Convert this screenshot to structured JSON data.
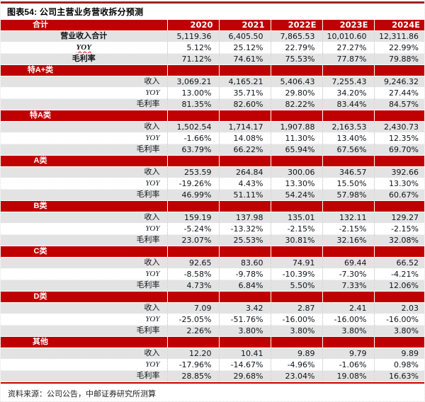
{
  "title": "图表54: 公司主营业务营收拆分预测",
  "source": "资料来源：公司公告，中邮证券研究所测算",
  "colors": {
    "header_red": "#C00000",
    "top_rule_red": "#9E2121",
    "row_gray": "#E3E3E3",
    "header_text": "#FFFFFF",
    "body_text": "#101418"
  },
  "chart_data": {
    "type": "table",
    "header": {
      "label": "合计",
      "years": [
        "2020",
        "2021",
        "2022E",
        "2023E",
        "2024E"
      ]
    },
    "sections": [
      {
        "name": "合计",
        "rows": [
          {
            "label": "营业收入合计",
            "values": [
              "5,119.36",
              "6,405.50",
              "7,865.53",
              "10,010.60",
              "12,311.86"
            ]
          },
          {
            "label": "YOY",
            "values": [
              "5.12%",
              "25.12%",
              "22.79%",
              "27.27%",
              "22.99%"
            ]
          },
          {
            "label": "毛利率",
            "values": [
              "71.12%",
              "74.61%",
              "75.53%",
              "77.87%",
              "79.88%"
            ]
          }
        ]
      },
      {
        "name": "特A+类",
        "rows": [
          {
            "label": "收入",
            "values": [
              "3,069.21",
              "4,165.21",
              "5,406.43",
              "7,255.43",
              "9,246.32"
            ]
          },
          {
            "label": "YOY",
            "values": [
              "13.00%",
              "35.71%",
              "29.80%",
              "34.20%",
              "27.44%"
            ]
          },
          {
            "label": "毛利率",
            "values": [
              "81.35%",
              "82.60%",
              "82.22%",
              "83.44%",
              "84.57%"
            ]
          }
        ]
      },
      {
        "name": "特A类",
        "rows": [
          {
            "label": "收入",
            "values": [
              "1,502.54",
              "1,714.17",
              "1,907.88",
              "2,163.53",
              "2,430.73"
            ]
          },
          {
            "label": "YOY",
            "values": [
              "-1.66%",
              "14.08%",
              "11.30%",
              "13.40%",
              "12.35%"
            ]
          },
          {
            "label": "毛利率",
            "values": [
              "63.79%",
              "66.22%",
              "65.94%",
              "67.56%",
              "69.70%"
            ]
          }
        ]
      },
      {
        "name": "A类",
        "rows": [
          {
            "label": "收入",
            "values": [
              "253.59",
              "264.84",
              "300.06",
              "346.57",
              "392.66"
            ]
          },
          {
            "label": "YOY",
            "values": [
              "-19.26%",
              "4.43%",
              "13.30%",
              "15.50%",
              "13.30%"
            ]
          },
          {
            "label": "毛利率",
            "values": [
              "46.99%",
              "51.11%",
              "54.24%",
              "57.98%",
              "60.67%"
            ]
          }
        ]
      },
      {
        "name": "B类",
        "rows": [
          {
            "label": "收入",
            "values": [
              "159.19",
              "137.98",
              "135.01",
              "132.11",
              "129.27"
            ]
          },
          {
            "label": "YOY",
            "values": [
              "-5.24%",
              "-13.32%",
              "-2.15%",
              "-2.15%",
              "-2.15%"
            ]
          },
          {
            "label": "毛利率",
            "values": [
              "23.07%",
              "25.53%",
              "30.81%",
              "32.16%",
              "32.08%"
            ]
          }
        ]
      },
      {
        "name": "C类",
        "rows": [
          {
            "label": "收入",
            "values": [
              "92.65",
              "83.60",
              "74.91",
              "69.44",
              "66.52"
            ]
          },
          {
            "label": "YOY",
            "values": [
              "-8.58%",
              "-9.78%",
              "-10.39%",
              "-7.30%",
              "-4.21%"
            ]
          },
          {
            "label": "毛利率",
            "values": [
              "4.73%",
              "6.84%",
              "5.50%",
              "7.33%",
              "12.06%"
            ]
          }
        ]
      },
      {
        "name": "D类",
        "rows": [
          {
            "label": "收入",
            "values": [
              "7.09",
              "3.42",
              "2.87",
              "2.41",
              "2.03"
            ]
          },
          {
            "label": "YOY",
            "values": [
              "-25.05%",
              "-51.76%",
              "-16.00%",
              "-16.00%",
              "-16.00%"
            ]
          },
          {
            "label": "毛利率",
            "values": [
              "2.26%",
              "3.80%",
              "3.80%",
              "3.80%",
              "3.80%"
            ]
          }
        ]
      },
      {
        "name": "其他",
        "rows": [
          {
            "label": "收入",
            "values": [
              "12.20",
              "10.41",
              "9.89",
              "9.79",
              "9.89"
            ]
          },
          {
            "label": "YOY",
            "values": [
              "-17.96%",
              "-14.67%",
              "-4.96%",
              "-1.06%",
              "0.98%"
            ]
          },
          {
            "label": "毛利率",
            "values": [
              "28.85%",
              "29.68%",
              "23.04%",
              "19.08%",
              "16.63%"
            ]
          }
        ]
      }
    ]
  }
}
